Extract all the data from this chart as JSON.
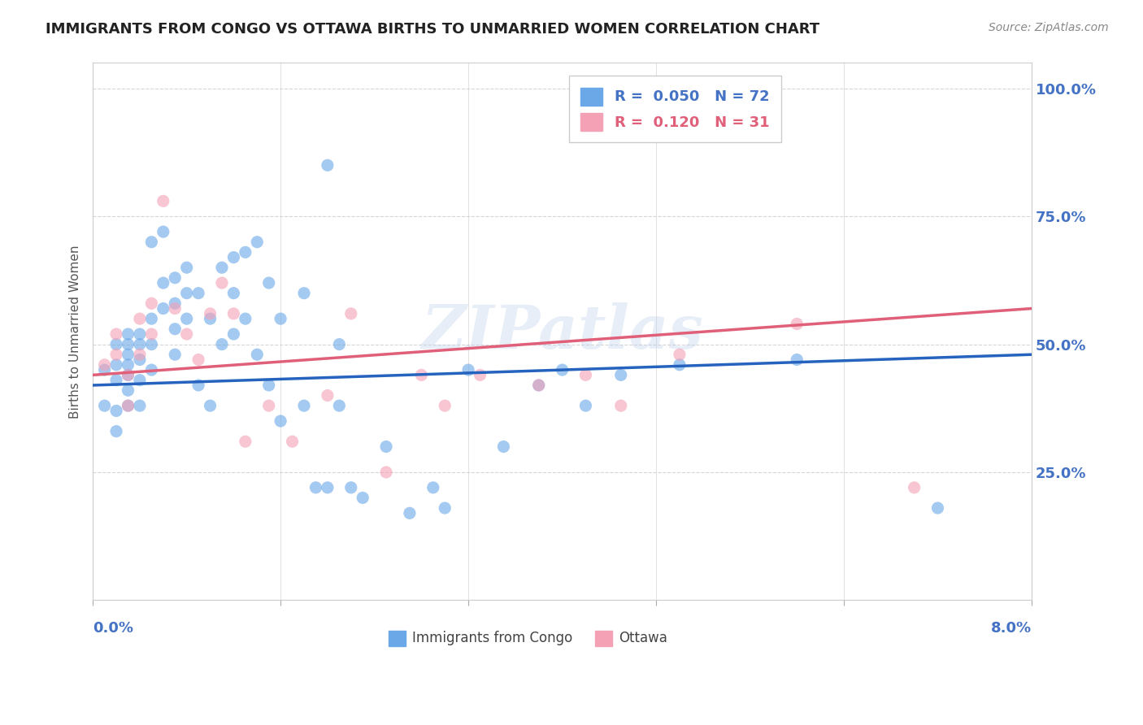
{
  "title": "IMMIGRANTS FROM CONGO VS OTTAWA BIRTHS TO UNMARRIED WOMEN CORRELATION CHART",
  "source": "Source: ZipAtlas.com",
  "ylabel": "Births to Unmarried Women",
  "ytick_values": [
    0.0,
    0.25,
    0.5,
    0.75,
    1.0
  ],
  "ytick_labels": [
    "",
    "25.0%",
    "50.0%",
    "75.0%",
    "100.0%"
  ],
  "xmin": 0.0,
  "xmax": 0.08,
  "ymin": 0.0,
  "ymax": 1.05,
  "legend_r1": "R =  0.050",
  "legend_n1": "N = 72",
  "legend_r2": "R =  0.120",
  "legend_n2": "N = 31",
  "blue_color": "#6aa8e8",
  "pink_color": "#f4a0b5",
  "blue_line_color": "#2563be",
  "pink_line_color": "#e0607a",
  "axis_label_color": "#4472c4",
  "title_color": "#222222",
  "watermark": "ZIPatlas",
  "blue_scatter_x": [
    0.001,
    0.001,
    0.002,
    0.002,
    0.002,
    0.002,
    0.002,
    0.003,
    0.003,
    0.003,
    0.003,
    0.003,
    0.003,
    0.003,
    0.004,
    0.004,
    0.004,
    0.004,
    0.004,
    0.005,
    0.005,
    0.005,
    0.005,
    0.006,
    0.006,
    0.006,
    0.007,
    0.007,
    0.007,
    0.007,
    0.008,
    0.008,
    0.008,
    0.009,
    0.009,
    0.01,
    0.01,
    0.011,
    0.011,
    0.012,
    0.012,
    0.012,
    0.013,
    0.013,
    0.014,
    0.014,
    0.015,
    0.015,
    0.016,
    0.016,
    0.018,
    0.018,
    0.019,
    0.02,
    0.02,
    0.021,
    0.021,
    0.022,
    0.023,
    0.025,
    0.027,
    0.029,
    0.03,
    0.032,
    0.035,
    0.038,
    0.04,
    0.042,
    0.045,
    0.05,
    0.06,
    0.072
  ],
  "blue_scatter_y": [
    0.45,
    0.38,
    0.5,
    0.46,
    0.43,
    0.37,
    0.33,
    0.52,
    0.5,
    0.48,
    0.46,
    0.44,
    0.41,
    0.38,
    0.52,
    0.5,
    0.47,
    0.43,
    0.38,
    0.7,
    0.55,
    0.5,
    0.45,
    0.72,
    0.62,
    0.57,
    0.63,
    0.58,
    0.53,
    0.48,
    0.65,
    0.6,
    0.55,
    0.6,
    0.42,
    0.55,
    0.38,
    0.65,
    0.5,
    0.67,
    0.6,
    0.52,
    0.68,
    0.55,
    0.7,
    0.48,
    0.62,
    0.42,
    0.55,
    0.35,
    0.6,
    0.38,
    0.22,
    0.85,
    0.22,
    0.5,
    0.38,
    0.22,
    0.2,
    0.3,
    0.17,
    0.22,
    0.18,
    0.45,
    0.3,
    0.42,
    0.45,
    0.38,
    0.44,
    0.46,
    0.47,
    0.18
  ],
  "pink_scatter_x": [
    0.001,
    0.002,
    0.002,
    0.003,
    0.003,
    0.004,
    0.004,
    0.005,
    0.005,
    0.006,
    0.007,
    0.008,
    0.009,
    0.01,
    0.011,
    0.012,
    0.013,
    0.015,
    0.017,
    0.02,
    0.022,
    0.025,
    0.028,
    0.03,
    0.033,
    0.038,
    0.042,
    0.045,
    0.05,
    0.06,
    0.07
  ],
  "pink_scatter_y": [
    0.46,
    0.52,
    0.48,
    0.44,
    0.38,
    0.55,
    0.48,
    0.58,
    0.52,
    0.78,
    0.57,
    0.52,
    0.47,
    0.56,
    0.62,
    0.56,
    0.31,
    0.38,
    0.31,
    0.4,
    0.56,
    0.25,
    0.44,
    0.38,
    0.44,
    0.42,
    0.44,
    0.38,
    0.48,
    0.54,
    0.22
  ],
  "blue_trend_x": [
    0.0,
    0.08
  ],
  "blue_trend_y": [
    0.42,
    0.48
  ],
  "pink_trend_x": [
    0.0,
    0.08
  ],
  "pink_trend_y": [
    0.44,
    0.57
  ],
  "grid_color": "#cccccc",
  "scatter_size": 120,
  "scatter_alpha": 0.6
}
